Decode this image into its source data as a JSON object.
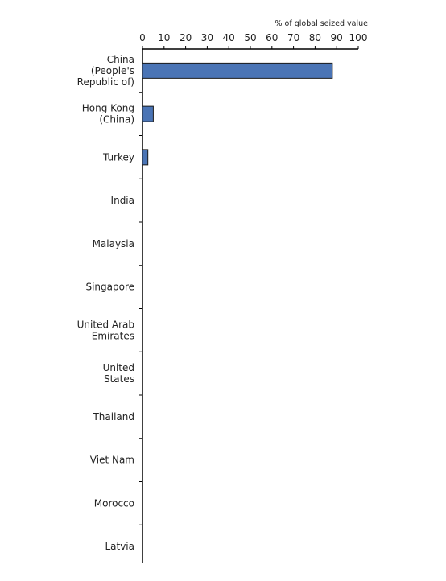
{
  "chart_data": {
    "type": "bar",
    "orientation": "horizontal",
    "axis_position": "top",
    "xlabel": "% of global seized value",
    "xlim": [
      0,
      100
    ],
    "xticks": [
      0,
      10,
      20,
      30,
      40,
      50,
      60,
      70,
      80,
      90,
      100
    ],
    "categories": [
      "China (People's Republic of)",
      "Hong Kong (China)",
      "Turkey",
      "India",
      "Malaysia",
      "Singapore",
      "United Arab Emirates",
      "United States",
      "Thailand",
      "Viet Nam",
      "Morocco",
      "Latvia"
    ],
    "category_label_lines": [
      [
        "China",
        "(People's",
        "Republic of)"
      ],
      [
        "Hong Kong",
        "(China)"
      ],
      [
        "Turkey"
      ],
      [
        "India"
      ],
      [
        "Malaysia"
      ],
      [
        "Singapore"
      ],
      [
        "United Arab",
        "Emirates"
      ],
      [
        "United",
        "States"
      ],
      [
        "Thailand"
      ],
      [
        "Viet Nam"
      ],
      [
        "Morocco"
      ],
      [
        "Latvia"
      ]
    ],
    "values": [
      88,
      5,
      2.5,
      0,
      0,
      0,
      0,
      0,
      0,
      0,
      0,
      0
    ],
    "bar_color": "#4a74b5",
    "bar_stroke": "#1a1a1a",
    "grid": false,
    "legend": "none"
  }
}
